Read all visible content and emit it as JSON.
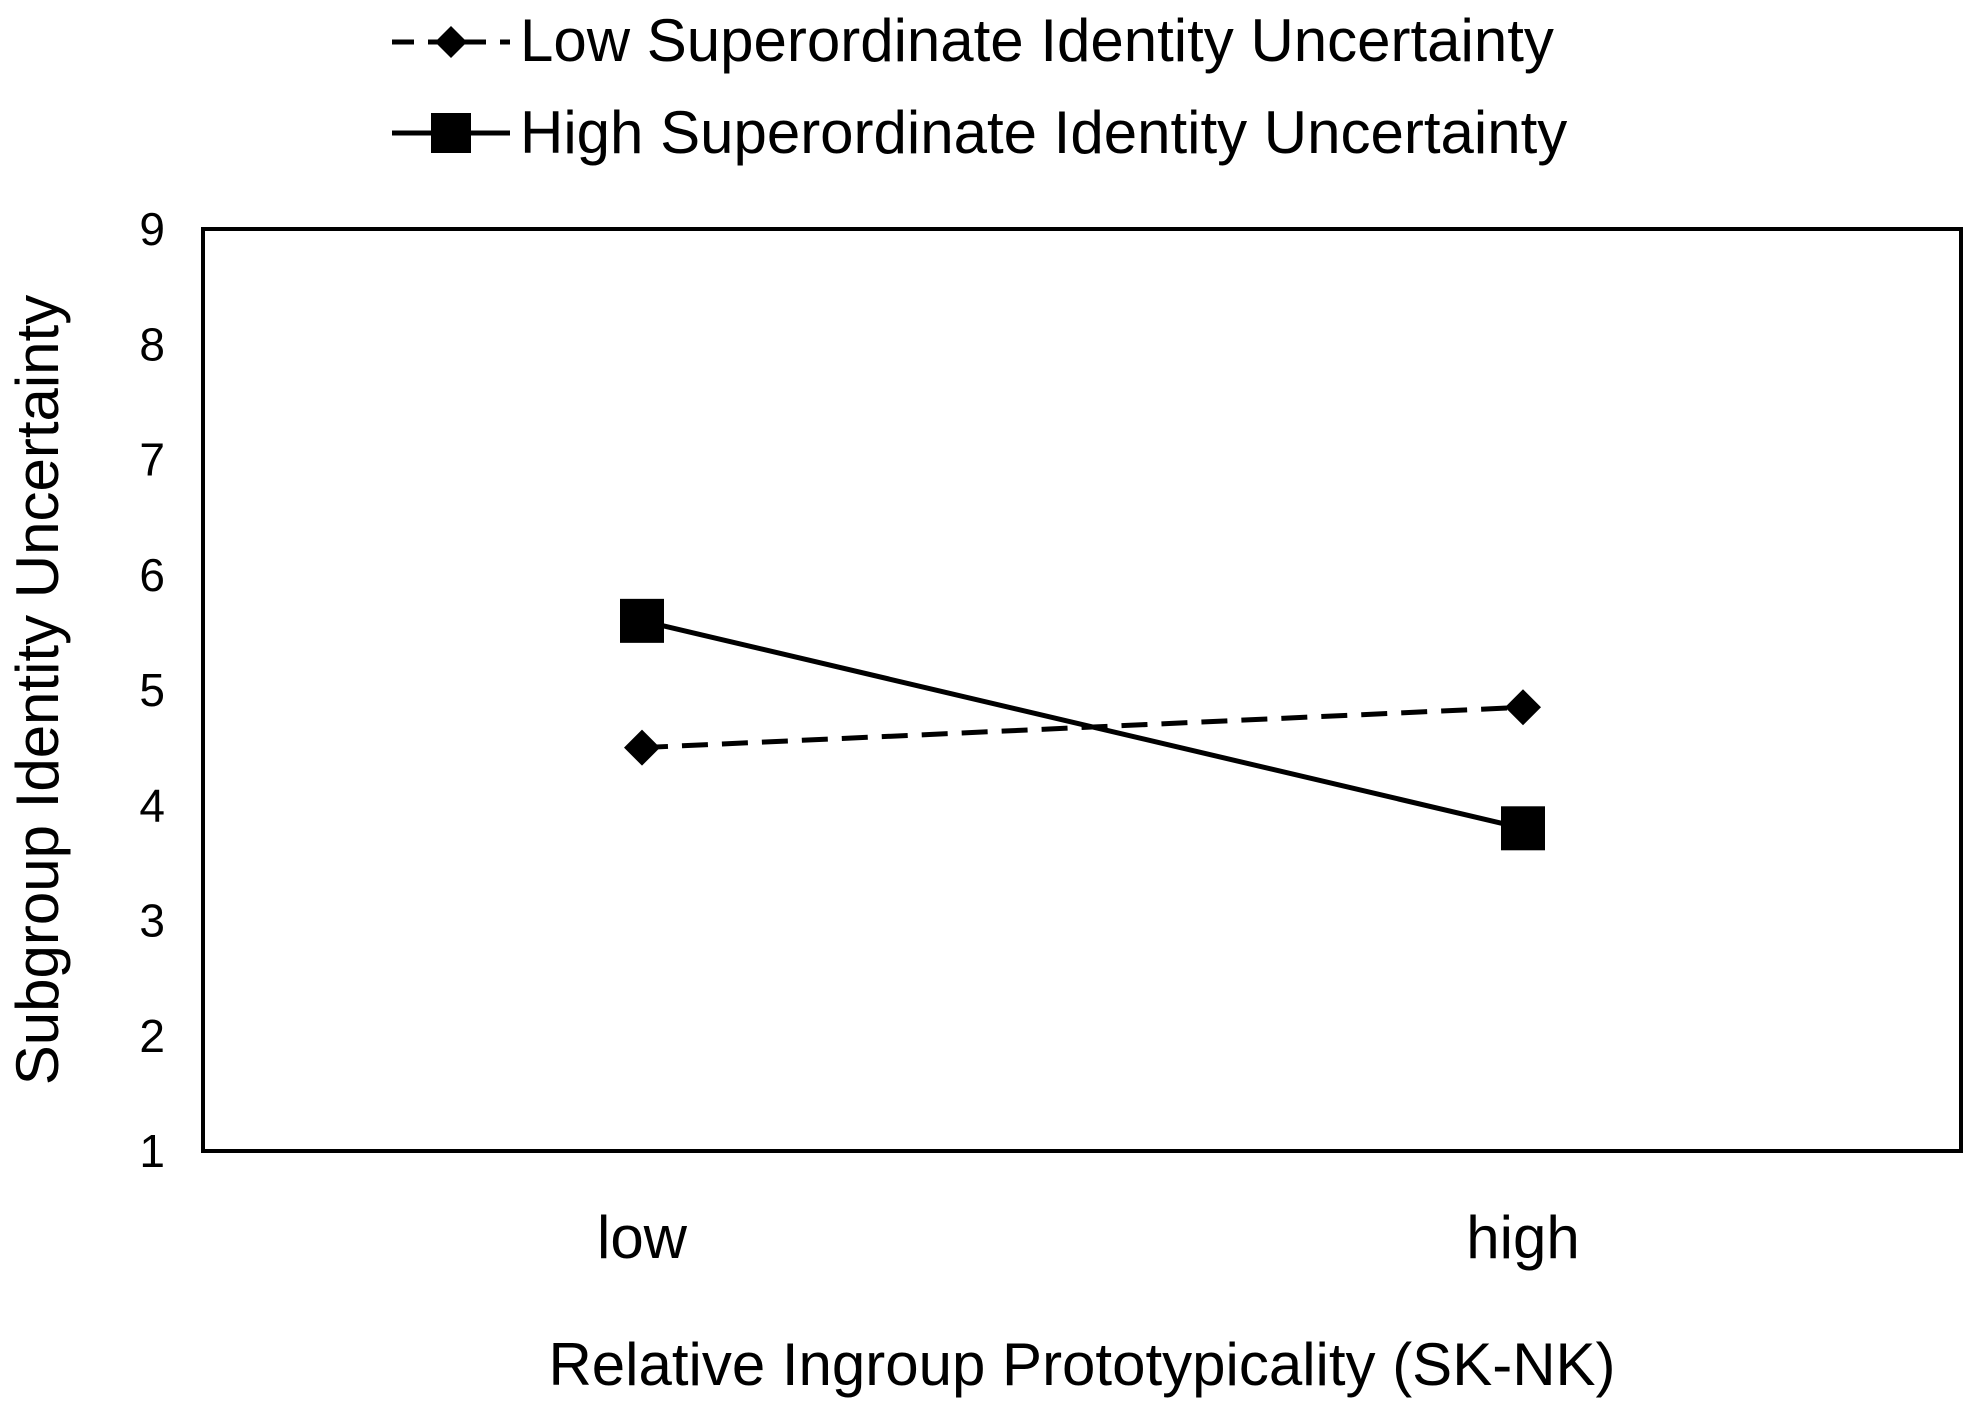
{
  "chart_data": {
    "type": "line",
    "title": "",
    "xlabel": "Relative Ingroup Prototypicality (SK-NK)",
    "ylabel": "Subgroup Identity Uncertainty",
    "categories": [
      "low",
      "high"
    ],
    "ylim": [
      1,
      9
    ],
    "yticks": [
      "1",
      "2",
      "3",
      "4",
      "5",
      "6",
      "7",
      "8",
      "9"
    ],
    "grid": false,
    "legend_position": "top",
    "series": [
      {
        "name": "Low Superordinate Identity Uncertainty",
        "values": [
          4.5,
          4.85
        ],
        "marker": "diamond",
        "line": "dashed"
      },
      {
        "name": "High Superordinate Identity Uncertainty",
        "values": [
          5.6,
          3.8
        ],
        "marker": "square",
        "line": "solid"
      }
    ]
  }
}
